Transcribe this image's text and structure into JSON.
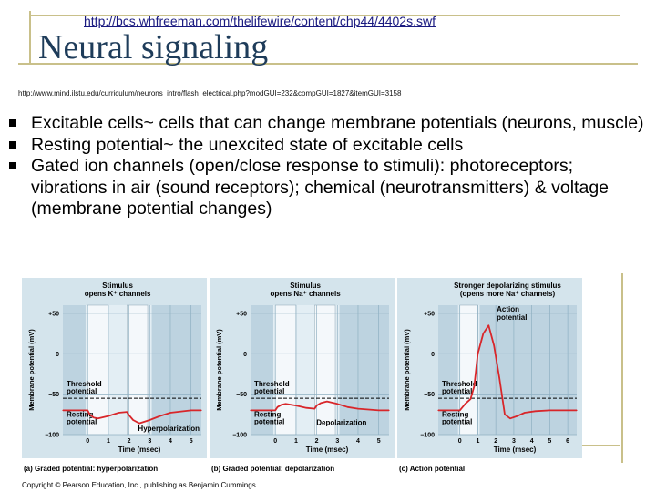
{
  "header": {
    "top_link": "http://bcs.whfreeman.com/thelifewire/content/chp44/4402s.swf",
    "title": "Neural signaling",
    "sub_link": "http://www.mind.ilstu.edu/curriculum/neurons_intro/flash_electrical.php?modGUI=232&compGUI=1827&itemGUI=3158"
  },
  "bullets": [
    {
      "text": "Excitable cells~ cells that can change membrane potentials (neurons, muscle)"
    },
    {
      "text": "Resting potential~ the unexcited state of excitable cells"
    },
    {
      "text": "Gated ion channels (open/close response to stimuli): photoreceptors; vibrations in air (sound receptors); chemical (neurotransmitters) & voltage (membrane potential changes)"
    }
  ],
  "figure": {
    "credit": "Copyright © Pearson Education, Inc., publishing as Benjamin Cummings.",
    "chart_data": [
      {
        "type": "line",
        "stimulus": "Stimulus opens K⁺ channels",
        "ylabel": "Membrane potential (mV)",
        "xlabel": "Time (msec)",
        "yticks": [
          50,
          0,
          -50,
          -100
        ],
        "xticks": [
          0,
          1,
          2,
          3,
          4,
          5
        ],
        "ylim": [
          -100,
          60
        ],
        "xlim": [
          -1.2,
          5.5
        ],
        "threshold": -55,
        "threshold_label": "Threshold potential",
        "resting_label": "Resting potential",
        "feature_label": "Hyperpolarization",
        "caption": "(a) Graded potential: hyperpolarization",
        "stimuli": [
          [
            0.0,
            1.0
          ],
          [
            1.9,
            2.9
          ]
        ],
        "shade": [
          [
            -0.1,
            3.1
          ]
        ],
        "x": [
          -1.2,
          0.0,
          0.1,
          0.3,
          0.5,
          1.0,
          1.5,
          1.9,
          2.0,
          2.2,
          2.5,
          3.0,
          3.5,
          4.0,
          5.0,
          5.5
        ],
        "y": [
          -70,
          -70,
          -75,
          -79,
          -80,
          -77,
          -73,
          -72,
          -76,
          -82,
          -86,
          -82,
          -77,
          -73,
          -70,
          -70
        ]
      },
      {
        "type": "line",
        "stimulus": "Stimulus opens Na⁺ channels",
        "ylabel": "Membrane potential (mV)",
        "xlabel": "Time (msec)",
        "yticks": [
          50,
          0,
          -50,
          -100
        ],
        "xticks": [
          0,
          1,
          2,
          3,
          4,
          5
        ],
        "ylim": [
          -100,
          60
        ],
        "xlim": [
          -1.2,
          5.5
        ],
        "threshold": -55,
        "threshold_label": "Threshold potential",
        "resting_label": "Resting potential",
        "feature_label": "Depolarization",
        "caption": "(b) Graded potential: depolarization",
        "stimuli": [
          [
            0.0,
            1.0
          ],
          [
            1.9,
            2.9
          ]
        ],
        "shade": [
          [
            -0.1,
            3.1
          ]
        ],
        "x": [
          -1.2,
          0.0,
          0.1,
          0.3,
          0.5,
          1.0,
          1.5,
          1.9,
          2.0,
          2.2,
          2.5,
          3.0,
          3.5,
          4.0,
          5.0,
          5.5
        ],
        "y": [
          -70,
          -70,
          -66,
          -63,
          -62,
          -64,
          -67,
          -68,
          -64,
          -61,
          -59,
          -62,
          -66,
          -68,
          -70,
          -70
        ]
      },
      {
        "type": "line",
        "stimulus": "Stronger depolarizing stimulus (opens more Na⁺ channels)",
        "ylabel": "Membrane potential (mV)",
        "xlabel": "Time (msec)",
        "yticks": [
          50,
          0,
          -50,
          -100
        ],
        "xticks": [
          0,
          1,
          2,
          3,
          4,
          5,
          6
        ],
        "ylim": [
          -100,
          60
        ],
        "xlim": [
          -1.2,
          6.5
        ],
        "threshold": -55,
        "threshold_label": "Threshold potential",
        "resting_label": "Resting potential",
        "feature_label": "Action potential",
        "caption": "(c) Action potential",
        "stimuli": [
          [
            0.0,
            1.0
          ]
        ],
        "shade": [
          [
            -0.1,
            1.1
          ]
        ],
        "x": [
          -1.2,
          0.0,
          0.3,
          0.6,
          0.8,
          1.0,
          1.3,
          1.6,
          1.9,
          2.2,
          2.5,
          2.8,
          3.2,
          3.6,
          4.2,
          5.0,
          6.0,
          6.5
        ],
        "y": [
          -70,
          -70,
          -62,
          -56,
          -40,
          0,
          25,
          35,
          10,
          -30,
          -75,
          -80,
          -77,
          -73,
          -71,
          -70,
          -70,
          -70
        ]
      }
    ]
  }
}
